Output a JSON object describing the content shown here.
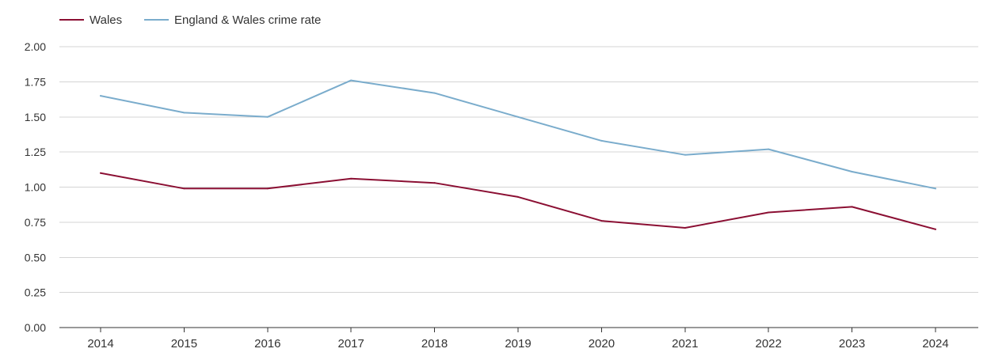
{
  "chart_data": {
    "type": "line",
    "title": "",
    "xlabel": "",
    "ylabel": "",
    "x": [
      "2014",
      "2015",
      "2016",
      "2017",
      "2018",
      "2019",
      "2020",
      "2021",
      "2022",
      "2023",
      "2024"
    ],
    "ylim": [
      0,
      2
    ],
    "yticks": [
      "0.00",
      "0.25",
      "0.50",
      "0.75",
      "1.00",
      "1.25",
      "1.50",
      "1.75",
      "2.00"
    ],
    "ytick_values": [
      0,
      0.25,
      0.5,
      0.75,
      1.0,
      1.25,
      1.5,
      1.75,
      2.0
    ],
    "grid": true,
    "legend_position": "top-left",
    "series": [
      {
        "name": "Wales",
        "color": "#8b0f33",
        "values": [
          1.1,
          0.99,
          0.99,
          1.06,
          1.03,
          0.93,
          0.76,
          0.71,
          0.82,
          0.86,
          0.7
        ]
      },
      {
        "name": "England & Wales crime rate",
        "color": "#7aaccc",
        "values": [
          1.65,
          1.53,
          1.5,
          1.76,
          1.67,
          1.5,
          1.33,
          1.23,
          1.27,
          1.11,
          0.99
        ]
      }
    ]
  }
}
